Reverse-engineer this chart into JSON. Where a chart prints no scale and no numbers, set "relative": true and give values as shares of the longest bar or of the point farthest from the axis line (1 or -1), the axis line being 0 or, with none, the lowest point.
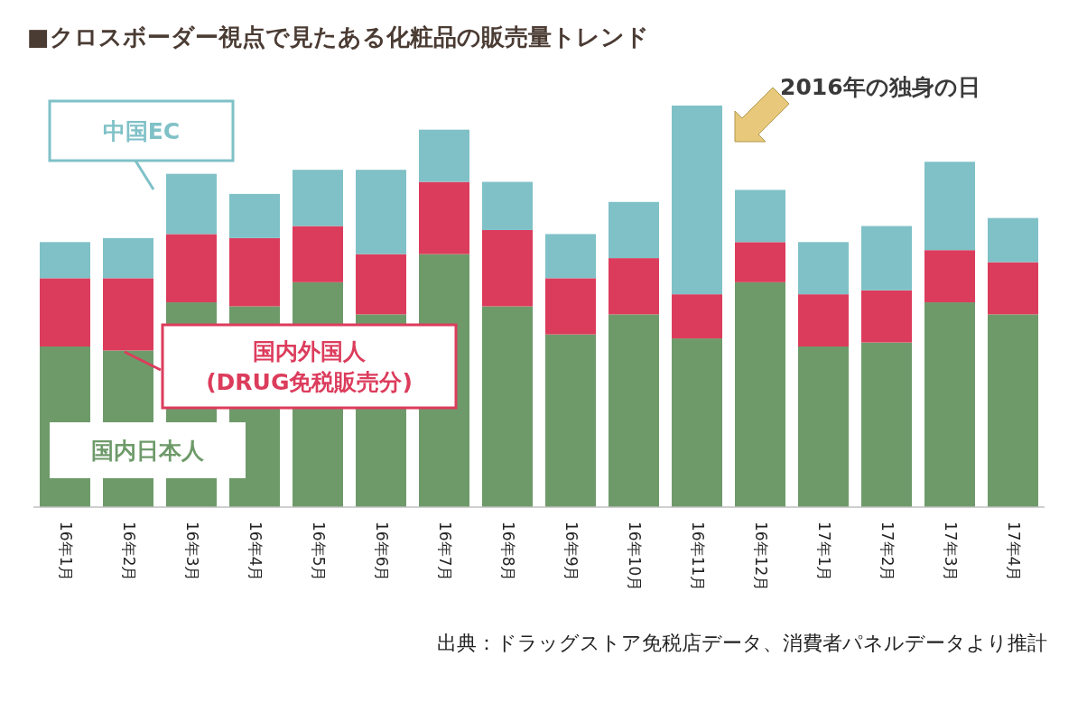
{
  "chart_data": {
    "type": "bar",
    "stacked": true,
    "relative": true,
    "title": "■クロスボーダー視点で見たある化粧品の販売量トレンド",
    "categories": [
      "16年1月",
      "16年2月",
      "16年3月",
      "16年4月",
      "16年5月",
      "16年6月",
      "16年7月",
      "16年8月",
      "16年9月",
      "16年10月",
      "16年11月",
      "16年12月",
      "17年1月",
      "17年2月",
      "17年3月",
      "17年4月"
    ],
    "series": [
      {
        "name": "国内日本人",
        "color": "#6e9a6a",
        "values": [
          0.4,
          0.39,
          0.51,
          0.5,
          0.56,
          0.48,
          0.63,
          0.5,
          0.43,
          0.48,
          0.42,
          0.56,
          0.4,
          0.41,
          0.51,
          0.48
        ]
      },
      {
        "name": "国内外国人 (DRUG免税販売分)",
        "color": "#dc3c5c",
        "values": [
          0.17,
          0.18,
          0.17,
          0.17,
          0.14,
          0.15,
          0.18,
          0.19,
          0.14,
          0.14,
          0.11,
          0.1,
          0.13,
          0.13,
          0.13,
          0.13
        ]
      },
      {
        "name": "中国EC",
        "color": "#7fc1c7",
        "values": [
          0.09,
          0.1,
          0.15,
          0.11,
          0.14,
          0.21,
          0.13,
          0.12,
          0.11,
          0.14,
          0.47,
          0.13,
          0.13,
          0.16,
          0.22,
          0.11
        ]
      }
    ],
    "annotations": [
      "2016年の独身の日",
      "出典：ドラッグストア免税店データ、消費者パネルデータより推計"
    ]
  }
}
